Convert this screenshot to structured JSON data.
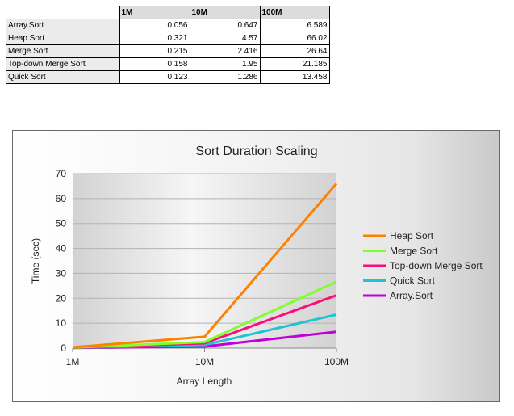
{
  "table": {
    "headers": [
      "",
      "1M",
      "10M",
      "100M"
    ],
    "rows": [
      {
        "label": "Array.Sort",
        "values": [
          "0.056",
          "0.647",
          "6.589"
        ]
      },
      {
        "label": "Heap Sort",
        "values": [
          "0.321",
          "4.57",
          "66.02"
        ]
      },
      {
        "label": "Merge Sort",
        "values": [
          "0.215",
          "2.416",
          "26.64"
        ]
      },
      {
        "label": "Top-down Merge Sort",
        "values": [
          "0.158",
          "1.95",
          "21.185"
        ]
      },
      {
        "label": "Quick Sort",
        "values": [
          "0.123",
          "1.286",
          "13.458"
        ]
      }
    ]
  },
  "chart_data": {
    "type": "line",
    "title": "Sort Duration Scaling",
    "xlabel": "Array Length",
    "ylabel": "Time (sec)",
    "categories": [
      "1M",
      "10M",
      "100M"
    ],
    "x_scale": "log",
    "ylim": [
      0,
      70
    ],
    "yticks": [
      0,
      10,
      20,
      30,
      40,
      50,
      60,
      70
    ],
    "grid": true,
    "legend_position": "right",
    "series": [
      {
        "name": "Heap Sort",
        "color": "#ff8000",
        "values": [
          0.321,
          4.57,
          66.02
        ]
      },
      {
        "name": "Merge Sort",
        "color": "#80ff2a",
        "values": [
          0.215,
          2.416,
          26.64
        ]
      },
      {
        "name": "Top-down Merge Sort",
        "color": "#ff0a7a",
        "values": [
          0.158,
          1.95,
          21.185
        ]
      },
      {
        "name": "Quick Sort",
        "color": "#1fc4d2",
        "values": [
          0.123,
          1.286,
          13.458
        ]
      },
      {
        "name": "Array.Sort",
        "color": "#c000d6",
        "values": [
          0.056,
          0.647,
          6.589
        ]
      }
    ]
  }
}
